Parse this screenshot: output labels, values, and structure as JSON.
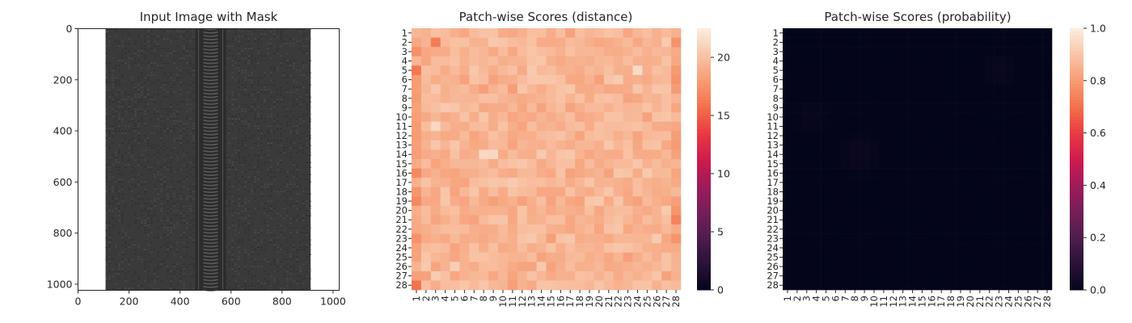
{
  "chart_data": [
    {
      "type": "image",
      "title": "Input Image with Mask",
      "xlim": [
        0,
        1024
      ],
      "ylim": [
        1024,
        0
      ],
      "xticks": [
        "0",
        "200",
        "400",
        "600",
        "800",
        "1000"
      ],
      "yticks": [
        "0",
        "200",
        "400",
        "600",
        "800",
        "1000"
      ],
      "x_tick_values": [
        0,
        200,
        400,
        600,
        800,
        1000
      ],
      "y_tick_values": [
        0,
        200,
        400,
        600,
        800,
        1000
      ],
      "image_description_colors": {
        "fabric": "#3a3a3a",
        "teeth": "#5a5a5a",
        "background": "#ffffff"
      },
      "zipper_extent_x": [
        108,
        912
      ],
      "teeth_extent_x": [
        460,
        580
      ]
    },
    {
      "type": "heatmap",
      "title": "Patch-wise Scores (distance)",
      "rows": 28,
      "cols": 28,
      "xticklabels": [
        "1",
        "2",
        "3",
        "4",
        "5",
        "6",
        "7",
        "8",
        "9",
        "10",
        "11",
        "12",
        "13",
        "14",
        "15",
        "16",
        "17",
        "18",
        "19",
        "20",
        "21",
        "22",
        "23",
        "24",
        "25",
        "26",
        "27",
        "28"
      ],
      "yticklabels": [
        "1",
        "2",
        "3",
        "4",
        "5",
        "6",
        "7",
        "8",
        "9",
        "10",
        "11",
        "12",
        "13",
        "14",
        "15",
        "16",
        "17",
        "18",
        "19",
        "20",
        "21",
        "22",
        "23",
        "24",
        "25",
        "26",
        "27",
        "28"
      ],
      "colorbar": {
        "min": 0,
        "max": 22.5,
        "ticks": [
          "0",
          "5",
          "10",
          "15",
          "20"
        ],
        "tick_values": [
          0,
          5,
          10,
          15,
          20
        ],
        "colormap": "rocket"
      },
      "value_range": [
        16,
        22.5
      ],
      "high_regions": [
        {
          "row": 14,
          "col": 8.5,
          "peak": 22.3
        },
        {
          "row": 5,
          "col": 24,
          "peak": 21.8
        },
        {
          "row": 11,
          "col": 3,
          "peak": 21.5
        },
        {
          "row": 26,
          "col": 5,
          "peak": 21.2
        },
        {
          "row": 20,
          "col": 27,
          "peak": 21.0
        }
      ],
      "low_regions": [
        {
          "row": 28,
          "col": 1,
          "min": 16.0
        },
        {
          "row": 5,
          "col": 1,
          "min": 16.2
        },
        {
          "row": 2,
          "col": 3,
          "min": 16.5
        }
      ]
    },
    {
      "type": "heatmap",
      "title": "Patch-wise Scores (probability)",
      "rows": 28,
      "cols": 28,
      "xticklabels": [
        "1",
        "2",
        "3",
        "4",
        "5",
        "6",
        "7",
        "8",
        "9",
        "10",
        "11",
        "12",
        "13",
        "14",
        "15",
        "16",
        "17",
        "18",
        "19",
        "20",
        "21",
        "22",
        "23",
        "24",
        "25",
        "26",
        "27",
        "28"
      ],
      "yticklabels": [
        "1",
        "2",
        "3",
        "4",
        "5",
        "6",
        "7",
        "8",
        "9",
        "10",
        "11",
        "12",
        "13",
        "14",
        "15",
        "16",
        "17",
        "18",
        "19",
        "20",
        "21",
        "22",
        "23",
        "24",
        "25",
        "26",
        "27",
        "28"
      ],
      "colorbar": {
        "min": 0.0,
        "max": 1.0,
        "ticks": [
          "0.0",
          "0.2",
          "0.4",
          "0.6",
          "0.8",
          "1.0"
        ],
        "tick_values": [
          0.0,
          0.2,
          0.4,
          0.6,
          0.8,
          1.0
        ],
        "colormap": "rocket"
      },
      "value_range": [
        0.0,
        0.03
      ],
      "high_regions": [
        {
          "row": 14,
          "col": 8.5,
          "peak": 0.03
        },
        {
          "row": 5,
          "col": 23,
          "peak": 0.02
        },
        {
          "row": 10,
          "col": 3.5,
          "peak": 0.015
        }
      ]
    }
  ]
}
